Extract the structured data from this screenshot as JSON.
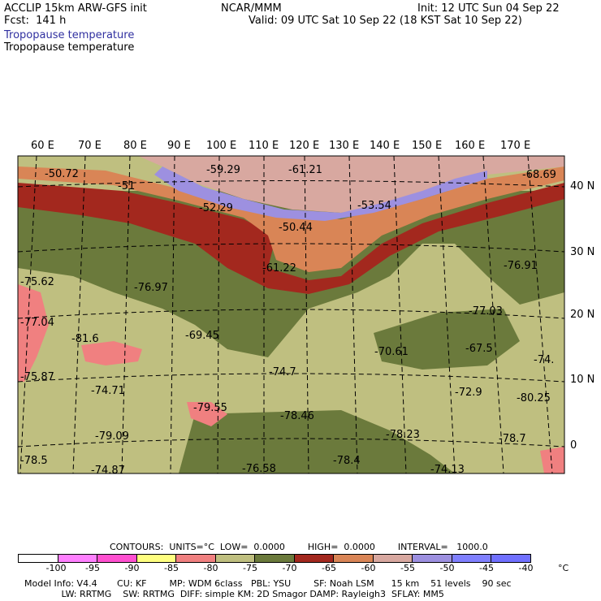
{
  "header": {
    "model": "ACCLIP 15km ARW-GFS init",
    "forecast": "Fcst:  141 h",
    "title_blue": "Tropopause temperature",
    "title_black": "Tropopause temperature",
    "center": "NCAR/MMM",
    "init": "Init: 12 UTC Sun 04 Sep 22",
    "valid": "Valid: 09 UTC Sat 10 Sep 22 (18 KST Sat 10 Sep 22)"
  },
  "map": {
    "lon_labels": [
      "60 E",
      "70 E",
      "80 E",
      "90 E",
      "100 E",
      "110 E",
      "120 E",
      "130 E",
      "140 E",
      "150 E",
      "160 E",
      "170 E"
    ],
    "lat_labels": [
      "40 N",
      "30 N",
      "20 N",
      "10 N",
      "0"
    ],
    "value_labels": [
      "-50.72",
      "-51",
      "-59.29",
      "-61.21",
      "-68.69",
      "-52.29",
      "-53.54",
      "-50.44",
      "-61.22",
      "-76.91",
      "-75.62",
      "-76.97",
      "-77.03",
      "-77.04",
      "-81.6",
      "-69.45",
      "-70.61",
      "-67.5",
      "-74.",
      "-75.87",
      "-74.7",
      "-74.71",
      "-72.9",
      "-80.25",
      "-79.55",
      "-78.46",
      "-78.23",
      "-78.7",
      "-79.09",
      "-78.5",
      "-76.58",
      "-78.4",
      "-74.13",
      "-74.87"
    ],
    "colors": {
      "land_light": "#bfbf80",
      "olive": "#6b7a3c",
      "dark_red": "#a3281e",
      "orange": "#d98556",
      "pink_brown": "#d8a8a0",
      "lavender": "#9d90e0",
      "salmon": "#f08080"
    }
  },
  "legend": {
    "contours": "CONTOURS:  UNITS=°C  LOW=  0.0000        HIGH=  0.0000        INTERVAL=   1000.0",
    "ticks": [
      "-100",
      "-95",
      "-90",
      "-85",
      "-80",
      "-75",
      "-70",
      "-65",
      "-60",
      "-55",
      "-50",
      "-45",
      "-40",
      "°C"
    ],
    "colors": [
      "#ffffff",
      "#ff80ff",
      "#ff50d0",
      "#ffff80",
      "#f08080",
      "#bfbf80",
      "#6b7a3c",
      "#a3281e",
      "#d98556",
      "#d8a8a0",
      "#9d90e0",
      "#8080ff",
      "#7070ff"
    ]
  },
  "footer": {
    "line1": "Model Info: V4.4       CU: KF        MP: WDM 6class   PBL: YSU        SF: Noah LSM      15 km    51 levels    90 sec",
    "line2": "             LW: RRTMG    SW: RRTMG  DIFF: simple KM: 2D Smagor DAMP: Rayleigh3  SFLAY: MM5"
  }
}
